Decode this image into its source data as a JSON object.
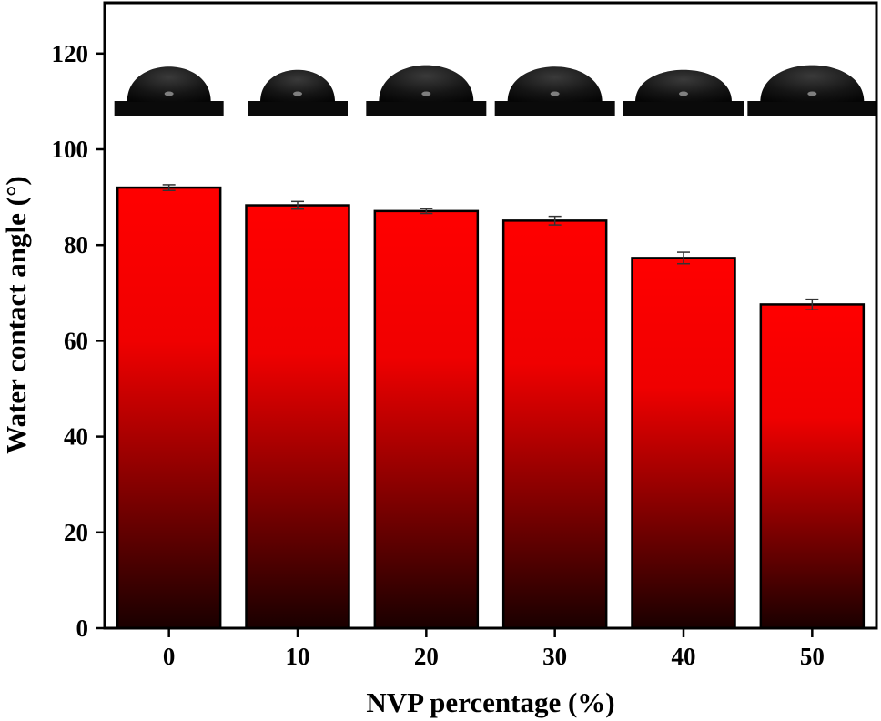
{
  "chart_data": {
    "type": "bar",
    "title": "",
    "xlabel": "NVP percentage (%)",
    "ylabel": "Water contact angle (°)",
    "categories": [
      "0",
      "10",
      "20",
      "30",
      "40",
      "50"
    ],
    "values": [
      92.0,
      88.3,
      87.1,
      85.1,
      77.3,
      67.6
    ],
    "errors": [
      0.6,
      0.8,
      0.5,
      0.9,
      1.2,
      1.1
    ],
    "ylim": [
      0,
      130
    ],
    "yticks": [
      "0",
      "20",
      "40",
      "60",
      "80",
      "100",
      "120"
    ],
    "grid": false,
    "legend": "none",
    "bar_gradient": {
      "top": "#ff0000",
      "bottom": "#1a0000"
    },
    "insets": "water droplet photographs above each bar"
  }
}
